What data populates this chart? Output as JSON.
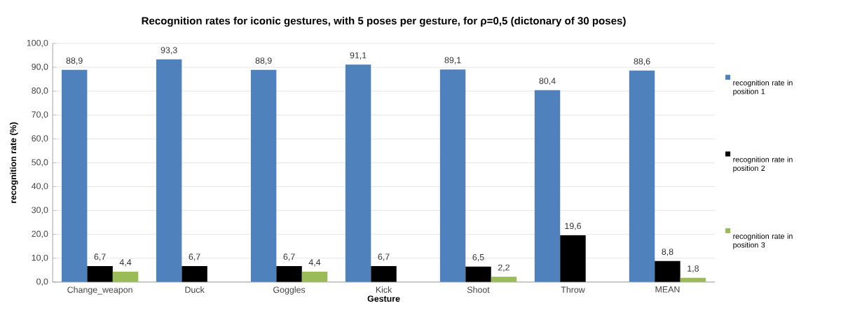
{
  "chart_data": {
    "type": "bar",
    "title": "Recognition rates for iconic gestures, with 5 poses per gesture, for ρ=0,5 (dictonary of 30 poses)",
    "xlabel": "Gesture",
    "ylabel": "recognition rate (%)",
    "categories": [
      "Change_weapon",
      "Duck",
      "Goggles",
      "Kick",
      "Shoot",
      "Throw",
      "MEAN"
    ],
    "series": [
      {
        "name": "recognition rate in position 1",
        "color": "#4f81bd",
        "values": [
          88.9,
          93.3,
          88.9,
          91.1,
          89.1,
          80.4,
          88.6
        ],
        "value_labels": [
          "88,9",
          "93,3",
          "88,9",
          "91,1",
          "89,1",
          "80,4",
          "88,6"
        ]
      },
      {
        "name": "recognition rate in position 2",
        "color": "#000000",
        "values": [
          6.7,
          6.7,
          6.7,
          6.7,
          6.5,
          19.6,
          8.8
        ],
        "value_labels": [
          "6,7",
          "6,7",
          "6,7",
          "6,7",
          "6,5",
          "19,6",
          "8,8"
        ]
      },
      {
        "name": "recognition rate in position 3",
        "color": "#9bbb59",
        "values": [
          4.4,
          null,
          4.4,
          null,
          2.2,
          null,
          1.8
        ],
        "value_labels": [
          "4,4",
          null,
          "4,4",
          null,
          "2,2",
          null,
          "1,8"
        ]
      }
    ],
    "ylim": [
      0,
      100
    ],
    "yticks": [
      {
        "value": 0,
        "label": "0,0"
      },
      {
        "value": 10,
        "label": "10,0"
      },
      {
        "value": 20,
        "label": "20,0"
      },
      {
        "value": 30,
        "label": "30,0"
      },
      {
        "value": 40,
        "label": "40,0"
      },
      {
        "value": 50,
        "label": "50,0"
      },
      {
        "value": 60,
        "label": "60,0"
      },
      {
        "value": 70,
        "label": "70,0"
      },
      {
        "value": 80,
        "label": "80,0"
      },
      {
        "value": 90,
        "label": "90,0"
      },
      {
        "value": 100,
        "label": "100,0"
      }
    ],
    "grid": "y",
    "legend": "right"
  }
}
